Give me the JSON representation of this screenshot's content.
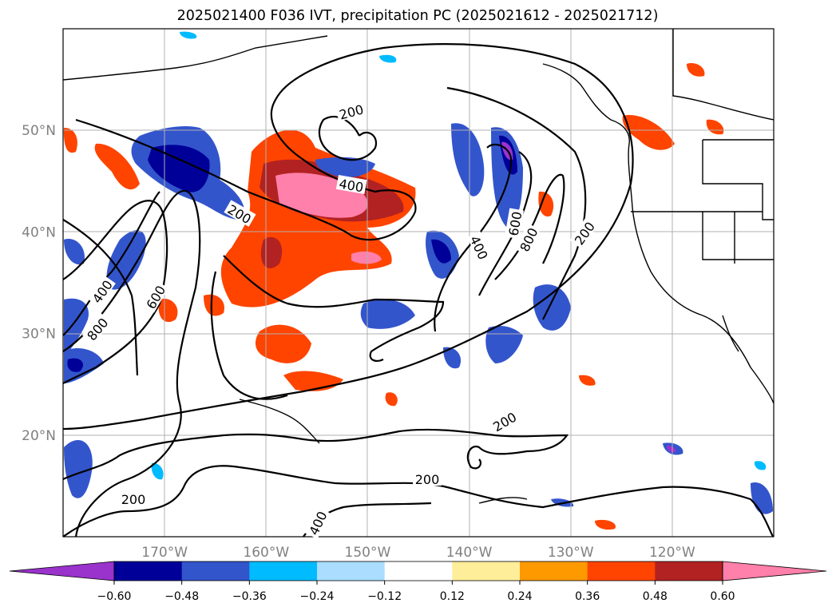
{
  "title": "2025021400 F036 IVT, precipitation PC (2025021612 - 2025021712)",
  "map": {
    "lon_range": [
      -180,
      -110
    ],
    "lat_range": [
      10,
      60
    ],
    "lon_ticks": [
      {
        "value": -170,
        "label": "170°W"
      },
      {
        "value": -160,
        "label": "160°W"
      },
      {
        "value": -150,
        "label": "150°W"
      },
      {
        "value": -140,
        "label": "140°W"
      },
      {
        "value": -130,
        "label": "130°W"
      },
      {
        "value": -120,
        "label": "120°W"
      }
    ],
    "lat_ticks": [
      {
        "value": 20,
        "label": "20°N"
      },
      {
        "value": 30,
        "label": "30°N"
      },
      {
        "value": 40,
        "label": "40°N"
      },
      {
        "value": 50,
        "label": "50°N"
      }
    ],
    "grid": true,
    "contour_labels": [
      "200",
      "200",
      "200",
      "200",
      "200",
      "200",
      "400",
      "400",
      "400",
      "400",
      "600",
      "600",
      "800",
      "800"
    ]
  },
  "colorbar": {
    "ticks": [
      "−0.60",
      "−0.48",
      "−0.36",
      "−0.24",
      "−0.12",
      "0.12",
      "0.24",
      "0.36",
      "0.48",
      "0.60"
    ],
    "colors": [
      "#9933cc",
      "#000099",
      "#3355cc",
      "#00bbff",
      "#aaddff",
      "#ffffff",
      "#ffee99",
      "#ff9900",
      "#ff4400",
      "#b22222",
      "#ff80aa"
    ],
    "extend": "both"
  }
}
